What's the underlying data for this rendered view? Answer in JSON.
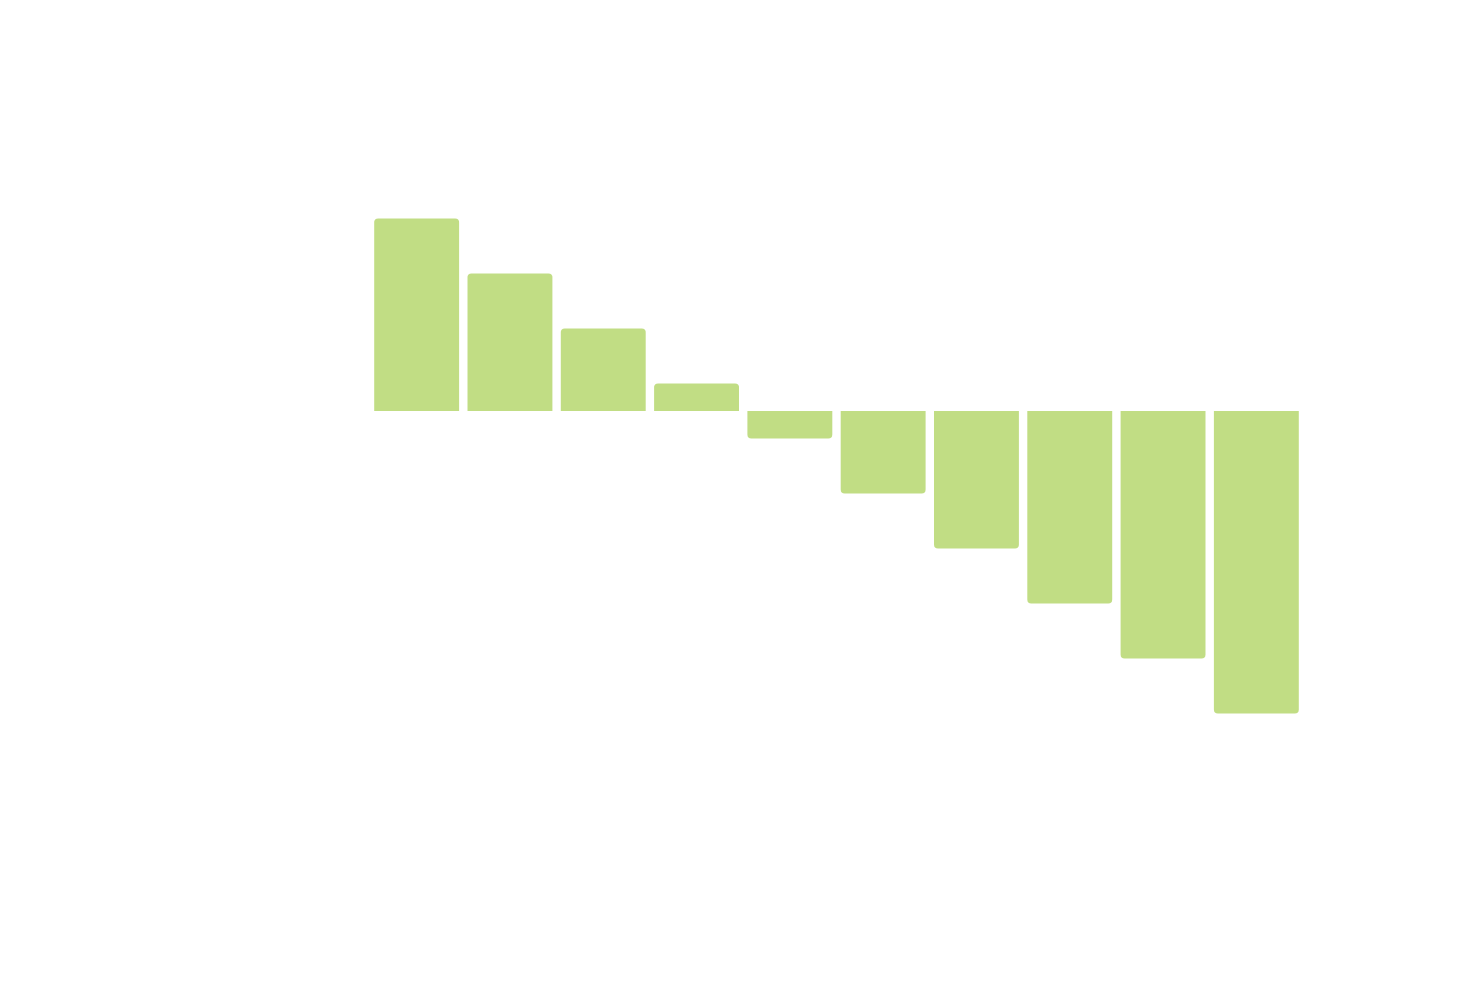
{
  "chart_data": {
    "type": "bar",
    "categories": [
      null,
      null,
      null,
      null,
      null,
      null,
      null,
      null,
      null,
      null
    ],
    "values": [
      3.5,
      2.5,
      1.5,
      0.5,
      -0.5,
      -1.5,
      -2.5,
      -3.5,
      -4.5,
      -5.5
    ],
    "color": "#c1dd84",
    "ylim": [
      -8,
      6.5
    ]
  }
}
